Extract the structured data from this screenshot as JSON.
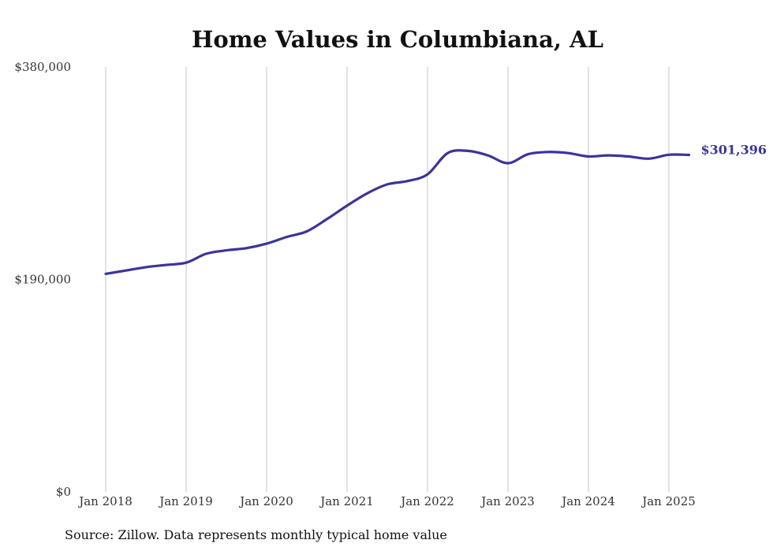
{
  "chart_data": {
    "type": "line",
    "title": "Home Values in Columbiana, AL",
    "xlabel": "",
    "ylabel": "",
    "x_ticks": [
      "Jan 2018",
      "Jan 2019",
      "Jan 2020",
      "Jan 2021",
      "Jan 2022",
      "Jan 2023",
      "Jan 2024",
      "Jan 2025"
    ],
    "y_ticks": [
      "$0",
      "$190,000",
      "$380,000"
    ],
    "ylim": [
      0,
      380000
    ],
    "xlim": [
      "2018-01",
      "2025-04"
    ],
    "grid": "vertical",
    "end_label": "$301,396",
    "source": "Source: Zillow. Data represents monthly typical home value",
    "series": [
      {
        "x": [
          "2018-01",
          "2018-04",
          "2018-07",
          "2018-10",
          "2019-01",
          "2019-04",
          "2019-07",
          "2019-10",
          "2020-01",
          "2020-04",
          "2020-07",
          "2020-10",
          "2021-01",
          "2021-04",
          "2021-07",
          "2021-10",
          "2022-01",
          "2022-04",
          "2022-07",
          "2022-10",
          "2023-01",
          "2023-04",
          "2023-07",
          "2023-10",
          "2024-01",
          "2024-04",
          "2024-07",
          "2024-10",
          "2025-01",
          "2025-04"
        ],
        "values": [
          195000,
          198000,
          201000,
          203000,
          205000,
          213000,
          216000,
          218000,
          222000,
          228000,
          233000,
          244000,
          256000,
          267000,
          275000,
          278000,
          284000,
          303000,
          305000,
          301000,
          294000,
          302000,
          304000,
          303000,
          300000,
          301000,
          300000,
          298000,
          301500,
          301396
        ]
      }
    ]
  },
  "colors": {
    "line": "#3b3598",
    "end_label": "#3b3598"
  }
}
